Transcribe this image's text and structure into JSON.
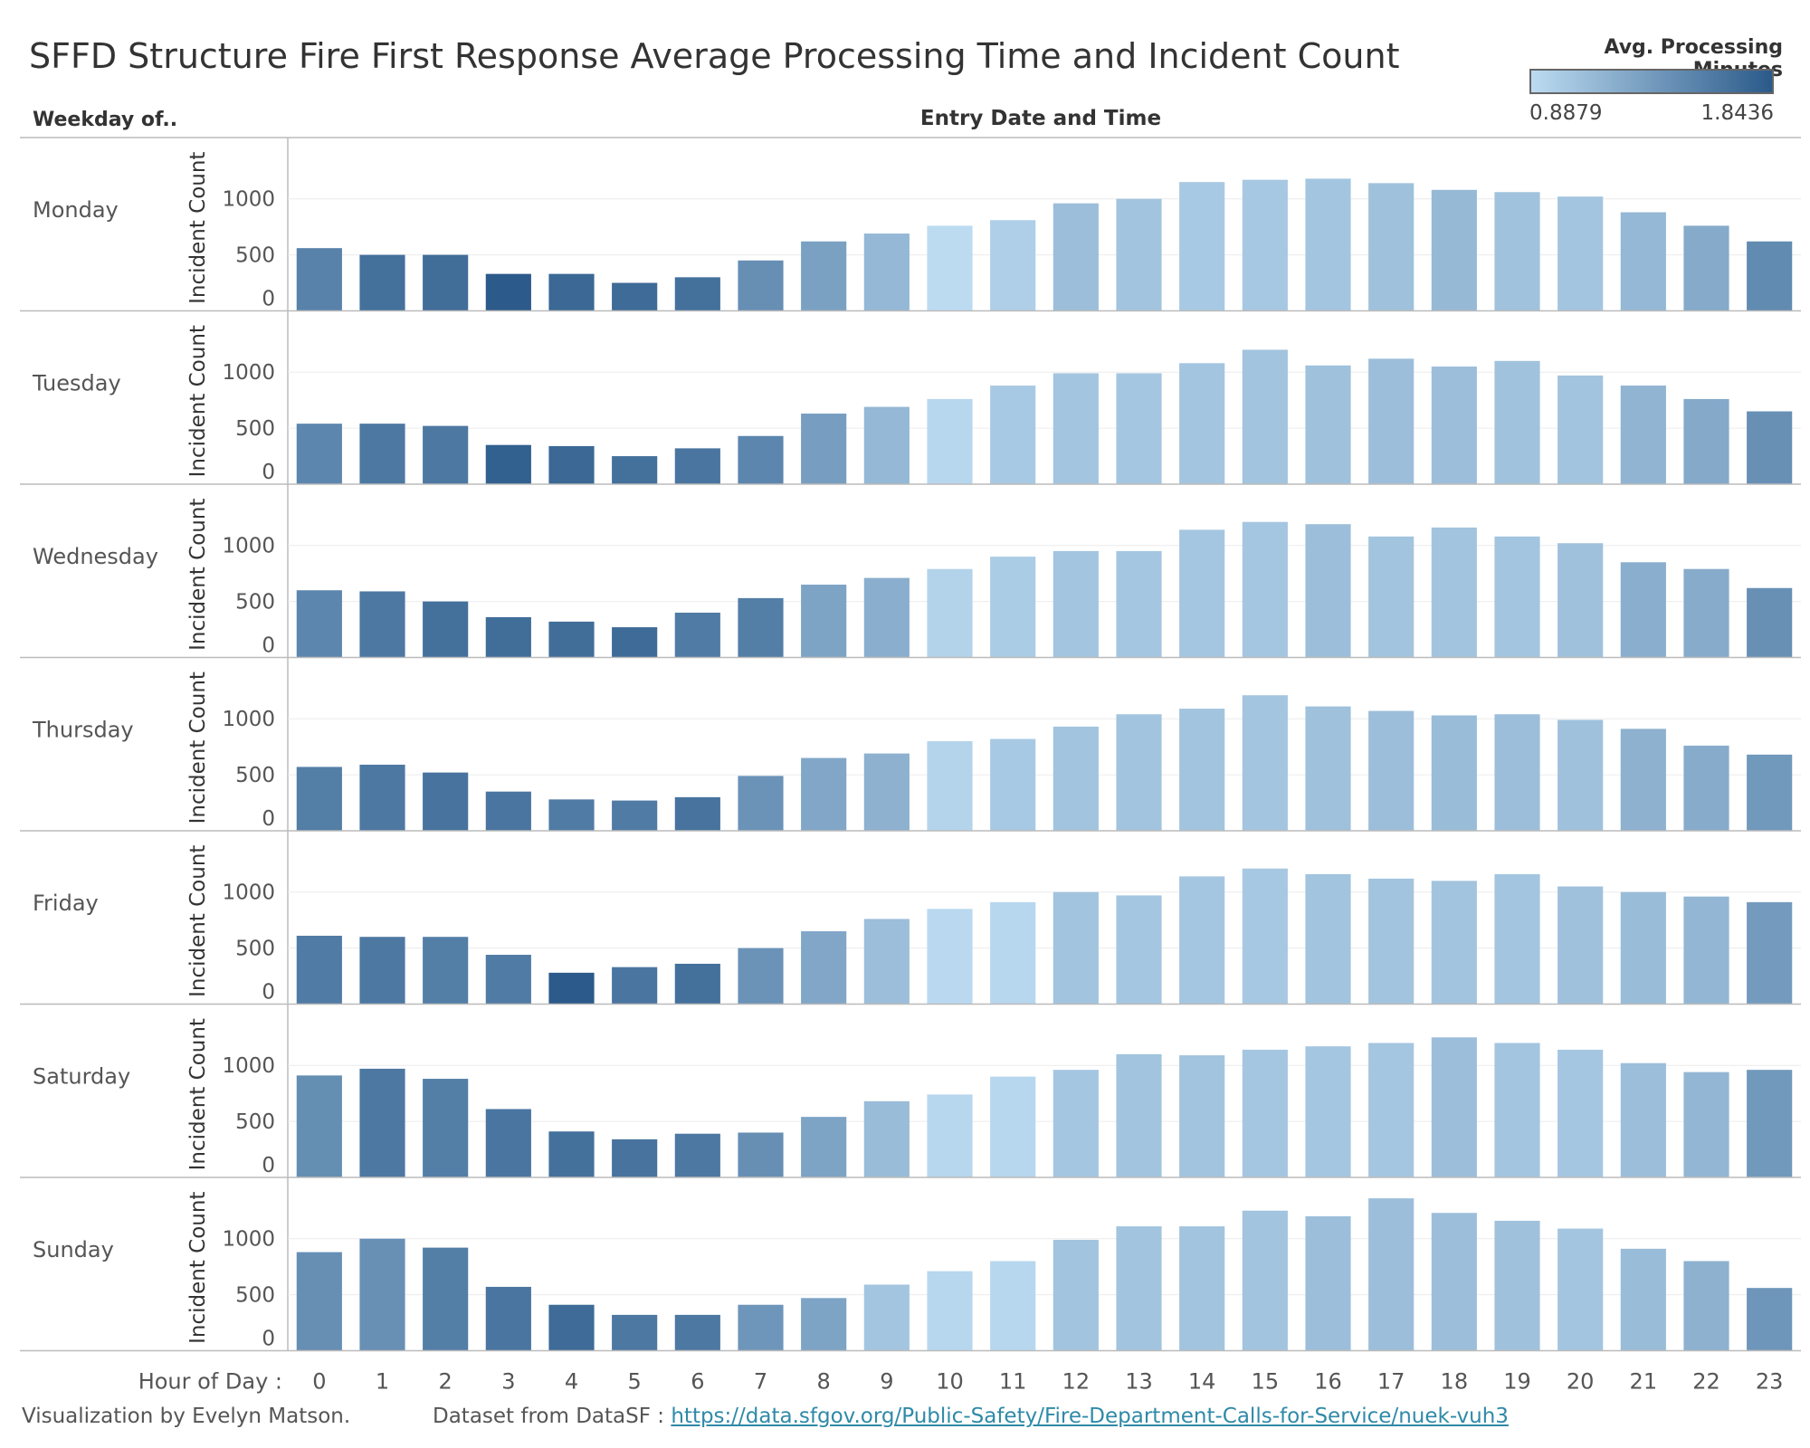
{
  "title": "SFFD Structure Fire First Response Average Processing Time and Incident Count",
  "legend": {
    "title": "Avg. Processing Minutes",
    "min_label": "0.8879",
    "max_label": "1.8436",
    "color_min": "#bcdbf1",
    "color_max": "#2b5a8a"
  },
  "row_header": "Weekday of..",
  "column_header": "Entry Date and Time",
  "x_axis_label": "Hour of Day :",
  "y_axis_label": "Incident Count",
  "footer": {
    "credit": "Visualization by Evelyn Matson.",
    "dataset_prefix": "Dataset from DataSF :",
    "dataset_link": "https://data.sfgov.org/Public-Safety/Fire-Department-Calls-for-Service/nuek-vuh3"
  },
  "chart_data": {
    "type": "bar",
    "x": [
      0,
      1,
      2,
      3,
      4,
      5,
      6,
      7,
      8,
      9,
      10,
      11,
      12,
      13,
      14,
      15,
      16,
      17,
      18,
      19,
      20,
      21,
      22,
      23
    ],
    "y_ticks": [
      0,
      500,
      1000
    ],
    "ylim": [
      0,
      1450
    ],
    "color_scale": [
      0.8879,
      1.8436
    ],
    "series": [
      {
        "name": "Monday",
        "values": [
          560,
          500,
          500,
          330,
          330,
          250,
          300,
          450,
          620,
          690,
          760,
          810,
          960,
          1000,
          1150,
          1170,
          1180,
          1140,
          1080,
          1060,
          1020,
          880,
          760,
          620
        ],
        "color_values": [
          1.55,
          1.68,
          1.7,
          1.84,
          1.74,
          1.72,
          1.68,
          1.45,
          1.32,
          1.15,
          0.89,
          0.98,
          1.1,
          1.06,
          1.02,
          1.03,
          1.05,
          1.08,
          1.14,
          1.07,
          1.05,
          1.15,
          1.25,
          1.48
        ]
      },
      {
        "name": "Tuesday",
        "values": [
          540,
          540,
          520,
          350,
          340,
          250,
          320,
          430,
          630,
          690,
          760,
          880,
          990,
          990,
          1080,
          1200,
          1060,
          1120,
          1050,
          1100,
          970,
          880,
          760,
          650
        ],
        "color_values": [
          1.52,
          1.62,
          1.62,
          1.8,
          1.74,
          1.68,
          1.64,
          1.52,
          1.34,
          1.15,
          0.92,
          1.02,
          1.05,
          1.04,
          1.05,
          1.06,
          1.08,
          1.1,
          1.1,
          1.07,
          1.06,
          1.18,
          1.26,
          1.44
        ]
      },
      {
        "name": "Wednesday",
        "values": [
          600,
          590,
          500,
          360,
          320,
          270,
          400,
          530,
          650,
          710,
          790,
          900,
          950,
          950,
          1140,
          1210,
          1190,
          1080,
          1160,
          1080,
          1020,
          850,
          790,
          620
        ],
        "color_values": [
          1.52,
          1.62,
          1.68,
          1.7,
          1.7,
          1.72,
          1.6,
          1.58,
          1.3,
          1.22,
          0.95,
          1.0,
          1.05,
          1.04,
          1.04,
          1.04,
          1.1,
          1.06,
          1.06,
          1.05,
          1.08,
          1.22,
          1.24,
          1.44
        ]
      },
      {
        "name": "Thursday",
        "values": [
          570,
          590,
          520,
          350,
          280,
          270,
          300,
          490,
          650,
          690,
          800,
          820,
          930,
          1040,
          1090,
          1210,
          1110,
          1070,
          1030,
          1040,
          990,
          910,
          760,
          680
        ],
        "color_values": [
          1.58,
          1.62,
          1.66,
          1.64,
          1.6,
          1.6,
          1.66,
          1.42,
          1.28,
          1.2,
          0.94,
          1.02,
          1.06,
          1.06,
          1.06,
          1.05,
          1.08,
          1.1,
          1.12,
          1.1,
          1.08,
          1.2,
          1.24,
          1.38
        ]
      },
      {
        "name": "Friday",
        "values": [
          610,
          600,
          600,
          440,
          280,
          330,
          360,
          500,
          650,
          760,
          850,
          910,
          1000,
          970,
          1140,
          1210,
          1160,
          1120,
          1100,
          1160,
          1050,
          1000,
          960,
          910
        ],
        "color_values": [
          1.6,
          1.62,
          1.58,
          1.6,
          1.84,
          1.64,
          1.68,
          1.42,
          1.28,
          1.1,
          0.9,
          0.92,
          1.06,
          1.04,
          1.04,
          1.03,
          1.06,
          1.06,
          1.06,
          1.05,
          1.08,
          1.12,
          1.16,
          1.36
        ]
      },
      {
        "name": "Saturday",
        "values": [
          910,
          970,
          880,
          610,
          410,
          340,
          390,
          400,
          540,
          680,
          740,
          900,
          960,
          1100,
          1090,
          1140,
          1170,
          1200,
          1250,
          1200,
          1140,
          1020,
          940,
          960
        ],
        "color_values": [
          1.46,
          1.62,
          1.58,
          1.64,
          1.68,
          1.66,
          1.62,
          1.45,
          1.3,
          1.12,
          0.92,
          0.92,
          1.04,
          1.06,
          1.06,
          1.04,
          1.04,
          1.04,
          1.1,
          1.05,
          1.04,
          1.1,
          1.16,
          1.38
        ]
      },
      {
        "name": "Sunday",
        "values": [
          880,
          1000,
          920,
          570,
          410,
          320,
          320,
          410,
          470,
          590,
          710,
          800,
          990,
          1110,
          1110,
          1250,
          1200,
          1360,
          1230,
          1160,
          1090,
          910,
          800,
          560
        ],
        "color_values": [
          1.45,
          1.44,
          1.58,
          1.64,
          1.72,
          1.62,
          1.62,
          1.4,
          1.3,
          1.05,
          0.92,
          0.92,
          1.06,
          1.06,
          1.06,
          1.06,
          1.1,
          1.1,
          1.1,
          1.08,
          1.05,
          1.12,
          1.2,
          1.4
        ]
      }
    ]
  }
}
